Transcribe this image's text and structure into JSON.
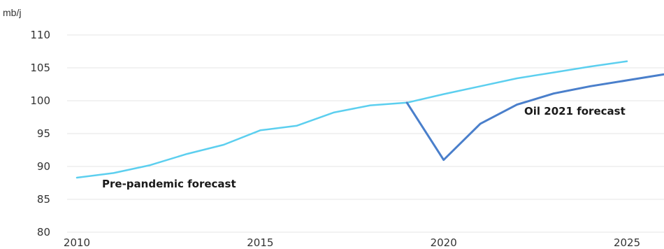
{
  "chart_data": {
    "type": "line",
    "ylabel": "mb/j",
    "xlim": [
      2010,
      2026
    ],
    "ylim": [
      80,
      110
    ],
    "y_ticks": [
      80,
      85,
      90,
      95,
      100,
      105,
      110
    ],
    "x_ticks": [
      2010,
      2015,
      2020,
      2025
    ],
    "grid": true,
    "series": [
      {
        "name": "Pre-pandemic forecast",
        "color": "#5ccfef",
        "x": [
          2010,
          2011,
          2012,
          2013,
          2014,
          2015,
          2016,
          2017,
          2018,
          2019,
          2020,
          2021,
          2022,
          2023,
          2024,
          2025
        ],
        "y": [
          88.3,
          89.0,
          90.2,
          91.9,
          93.3,
          95.5,
          96.2,
          98.2,
          99.3,
          99.7,
          101.0,
          102.2,
          103.4,
          104.3,
          105.2,
          106.0
        ]
      },
      {
        "name": "Oil 2021 forecast",
        "color": "#4a7fcb",
        "x": [
          2019,
          2020,
          2021,
          2022,
          2023,
          2024,
          2025,
          2026
        ],
        "y": [
          99.7,
          91.0,
          96.5,
          99.4,
          101.1,
          102.2,
          103.1,
          104.0
        ]
      }
    ]
  }
}
